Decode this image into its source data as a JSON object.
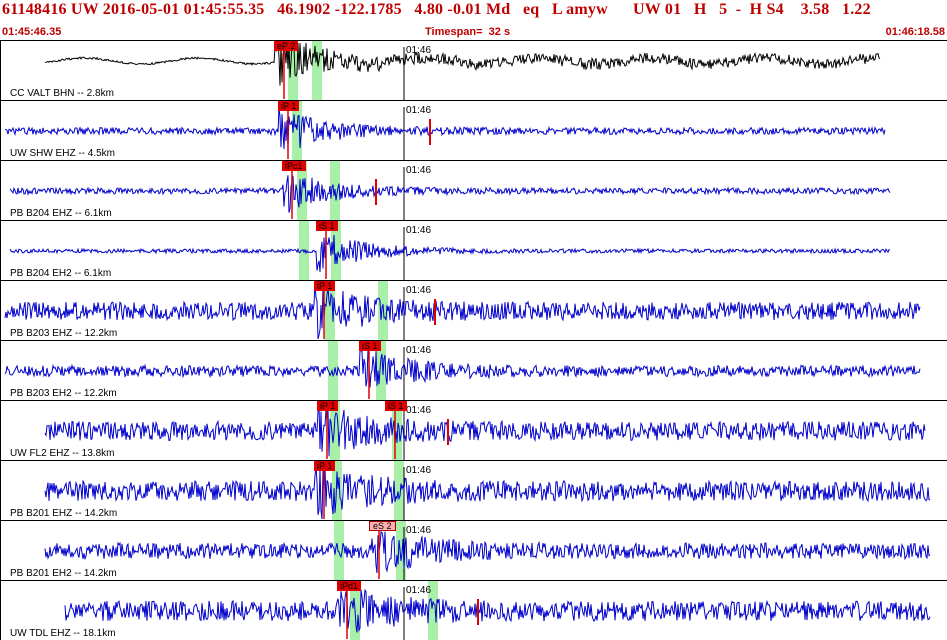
{
  "header": {
    "title": "61148416 UW 2016-05-01 01:45:55.35   46.1902 -122.1785   4.80 -0.01 Md   eq   L amyw      UW 01   H   5  -  H S4    3.58   1.22",
    "start_time": "01:45:46.35",
    "timespan": "Timespan=  32 s",
    "end_time": "01:46:18.58"
  },
  "colors": {
    "header_text": "#c00000",
    "trace_blue": "#0000cc",
    "trace_black": "#000000",
    "pick_red": "#e00000",
    "window_green": "#a8f0a8"
  },
  "traces": [
    {
      "label": "CC VALT BHN -- 2.8km",
      "time_mark": "01:46",
      "picks": [
        "eP 2"
      ],
      "color": "black",
      "amp": 0.5
    },
    {
      "label": "UW SHW EHZ -- 4.5km",
      "time_mark": "01:46",
      "picks": [
        "iP 1"
      ],
      "color": "blue",
      "amp": 0.35
    },
    {
      "label": "PB B204 EHZ -- 6.1km",
      "time_mark": "01:46",
      "picks": [
        "iPc1"
      ],
      "color": "blue",
      "amp": 0.3
    },
    {
      "label": "PB B204 EH2 -- 6.1km",
      "time_mark": "01:46",
      "picks": [
        "iS 1"
      ],
      "color": "blue",
      "amp": 0.2
    },
    {
      "label": "PB B203 EHZ -- 12.2km",
      "time_mark": "01:46",
      "picks": [
        "iP 1"
      ],
      "color": "blue",
      "amp": 0.9
    },
    {
      "label": "PB B203 EH2 -- 12.2km",
      "time_mark": "01:46",
      "picks": [
        "iS 1"
      ],
      "color": "blue",
      "amp": 0.55
    },
    {
      "label": "UW FL2 EHZ -- 13.8km",
      "time_mark": "01:46",
      "picks": [
        "iP 1",
        "iS 1"
      ],
      "color": "blue",
      "amp": 0.95
    },
    {
      "label": "PB B201 EHZ -- 14.2km",
      "time_mark": "01:46",
      "picks": [
        "iP 1"
      ],
      "color": "blue",
      "amp": 1.0
    },
    {
      "label": "PB B201 EH2 -- 14.2km",
      "time_mark": "01:46",
      "picks": [
        "eS 2"
      ],
      "color": "blue",
      "amp": 0.8
    },
    {
      "label": "UW TDL EHZ -- 18.1km",
      "time_mark": "01:46",
      "picks": [
        "iPd1"
      ],
      "color": "blue",
      "amp": 1.0
    }
  ]
}
